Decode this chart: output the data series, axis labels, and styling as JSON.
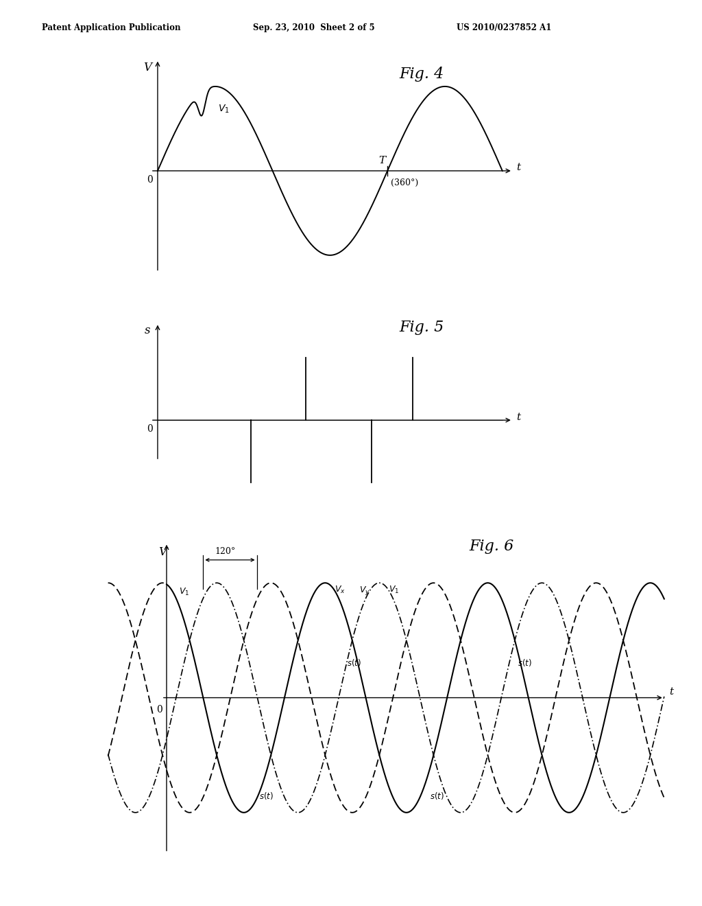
{
  "header_left": "Patent Application Publication",
  "header_mid": "Sep. 23, 2010  Sheet 2 of 5",
  "header_right": "US 2010/0237852 A1",
  "fig4_label": "Fig. 4",
  "fig5_label": "Fig. 5",
  "fig6_label": "Fig. 6",
  "bg_color": "#ffffff",
  "line_color": "#000000"
}
